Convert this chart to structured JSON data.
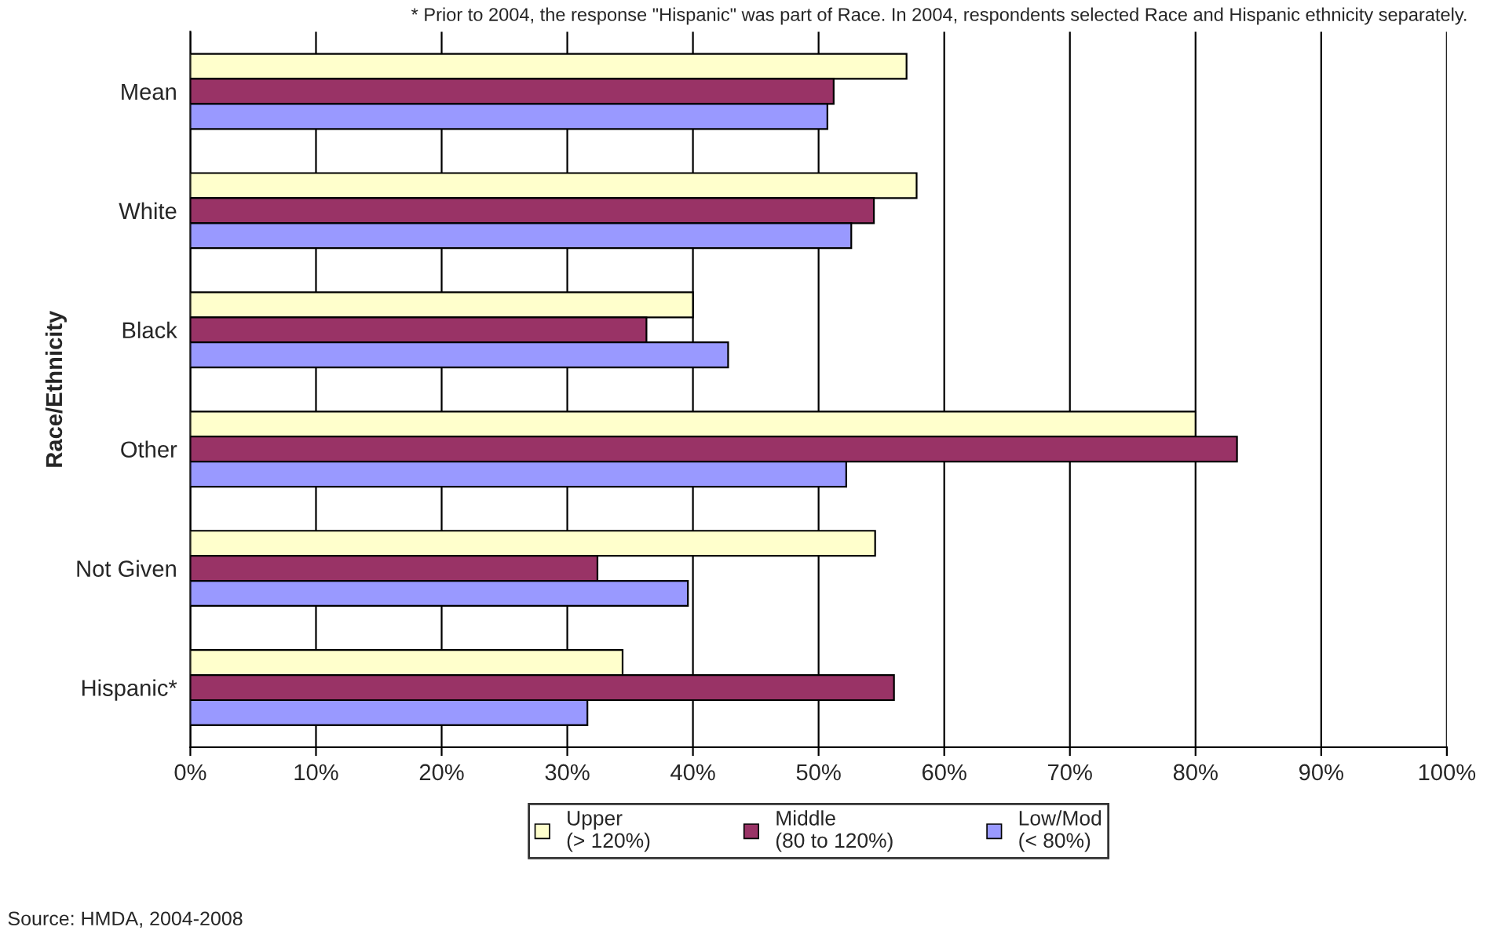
{
  "chart_data": {
    "type": "bar",
    "orientation": "horizontal",
    "ylabel": "Race/Ethnicity",
    "categories": [
      "Mean",
      "White",
      "Black",
      "Other",
      "Not Given",
      "Hispanic*"
    ],
    "series": [
      {
        "name": "Upper\n(> 120%)",
        "color": "#ffffcc",
        "values": [
          57.0,
          57.8,
          40.0,
          80.0,
          54.5,
          34.4
        ]
      },
      {
        "name": "Middle\n(80 to 120%)",
        "color": "#993366",
        "values": [
          51.2,
          54.4,
          36.3,
          83.3,
          32.4,
          56.0
        ]
      },
      {
        "name": "Low/Mod\n(< 80%)",
        "color": "#9999ff",
        "values": [
          50.7,
          52.6,
          42.8,
          52.2,
          39.6,
          31.6
        ]
      }
    ],
    "xlim": [
      0,
      100
    ],
    "xticks": [
      {
        "value": 0,
        "label": "0%"
      },
      {
        "value": 10,
        "label": "10%"
      },
      {
        "value": 20,
        "label": "20%"
      },
      {
        "value": 30,
        "label": "30%"
      },
      {
        "value": 40,
        "label": "40%"
      },
      {
        "value": 50,
        "label": "50%"
      },
      {
        "value": 60,
        "label": "60%"
      },
      {
        "value": 70,
        "label": "70%"
      },
      {
        "value": 80,
        "label": "80%"
      },
      {
        "value": 90,
        "label": "90%"
      },
      {
        "value": 100,
        "label": "100%"
      }
    ],
    "grid": "x",
    "legend": "bottom",
    "annotations": [
      "* Prior to 2004, the response \"Hispanic\" was part of Race. In 2004, respondents selected Race and Hispanic ethnicity separately.",
      "Source: HMDA, 2004-2008"
    ]
  }
}
